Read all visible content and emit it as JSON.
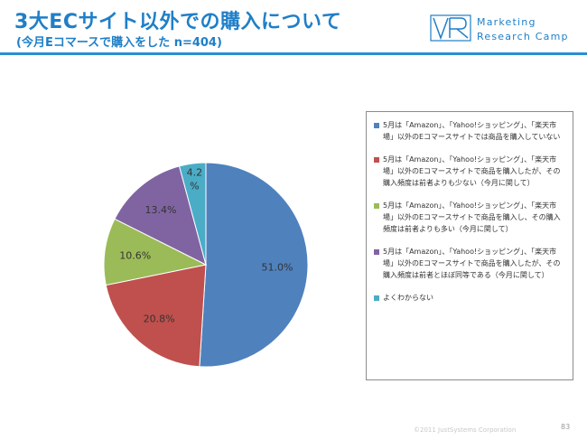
{
  "header": {
    "title": "3大ECサイト以外での購入について",
    "subtitle": "(今月Eコマースで購入をした n=404)"
  },
  "logo": {
    "line1": "Marketing",
    "line2": "Research Camp"
  },
  "colors": {
    "accent": "#2a8fd2",
    "title": "#1f7fc8"
  },
  "chart_data": {
    "type": "pie",
    "title": "",
    "start_angle_deg": 0,
    "direction": "clockwise",
    "legend_position": "right",
    "labels": [
      "5月は「Amazon」、「Yahoo!ショッピング」、「楽天市場」以外のEコマースサイトでは商品を購入していない",
      "5月は「Amazon」、「Yahoo!ショッピング」、「楽天市場」以外のEコマースサイトで商品を購入したが、その購入頻度は前者よりも少ない（今月に関して）",
      "5月は「Amazon」、「Yahoo!ショッピング」、「楽天市場」以外のEコマースサイトで商品を購入し、その購入頻度は前者よりも多い（今月に関して）",
      "5月は「Amazon」、「Yahoo!ショッピング」、「楽天市場」以外のEコマースサイトで商品を購入したが、その購入頻度は前者とほぼ同等である（今月に関して）",
      "よくわからない"
    ],
    "values": [
      51.0,
      20.8,
      10.6,
      13.4,
      4.2
    ],
    "value_labels": [
      "51.0%",
      "20.8%",
      "10.6%",
      "13.4%",
      "4.2\n%"
    ],
    "colors": [
      "#4f81bd",
      "#c0504d",
      "#9bbb59",
      "#8064a2",
      "#4bacc6"
    ]
  },
  "legend": {
    "items": [
      "5月は「Amazon」、「Yahoo!ショッピング」、「楽天市場」以外のEコマースサイトでは商品を購入していない",
      "5月は「Amazon」、「Yahoo!ショッピング」、「楽天市場」以外のEコマースサイトで商品を購入したが、その購入頻度は前者よりも少ない（今月に関して）",
      "5月は「Amazon」、「Yahoo!ショッピング」、「楽天市場」以外のEコマースサイトで商品を購入し、その購入頻度は前者よりも多い（今月に関して）",
      "5月は「Amazon」、「Yahoo!ショッピング」、「楽天市場」以外のEコマースサイトで商品を購入したが、その購入頻度は前者とほぼ同等である（今月に関して）",
      "よくわからない"
    ]
  },
  "footer": {
    "copyright": "©2011 JustSystems Corporation",
    "page": "83"
  }
}
